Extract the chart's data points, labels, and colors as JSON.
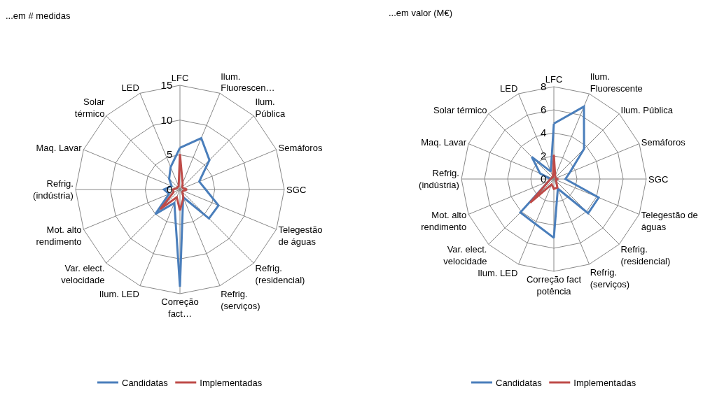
{
  "chart_data": [
    {
      "type": "radar",
      "title": "...em # medidas",
      "categories": [
        "LFC",
        "Ilum. Fluorescen…",
        "Ilum. Pública",
        "Semáforos",
        "SGC",
        "Telegestão de águas",
        "Refrig. (residencial)",
        "Refrig. (serviços)",
        "Correção fact…",
        "Ilum. LED",
        "Var. elect. velocidade",
        "Mot. alto rendimento",
        "Refrig. (indústria)",
        "Maq. Lavar",
        "Solar térmico",
        "LED"
      ],
      "series": [
        {
          "name": "Candidatas",
          "color": "#4a7ebb",
          "values": [
            6,
            8,
            6,
            3,
            3.7,
            6,
            5.9,
            1.2,
            14,
            2.1,
            5,
            1.7,
            2.3,
            1.3,
            2.2,
            3.5
          ]
        },
        {
          "name": "Implementadas",
          "color": "#be4b48",
          "values": [
            5.1,
            1,
            0.5,
            0.5,
            1,
            0.5,
            0.5,
            1.3,
            3,
            1.2,
            4,
            1,
            1,
            0.5,
            0.5,
            0.5
          ]
        }
      ],
      "ylim": [
        0,
        15
      ],
      "yticks": [
        0,
        5,
        10,
        15
      ],
      "grid": true,
      "legend": "bottom",
      "line_style": "solid"
    },
    {
      "type": "radar",
      "title": "...em valor (M€)",
      "categories": [
        "LFC",
        "Ilum. Fluorescente",
        "Ilum. Pública",
        "Semáforos",
        "SGC",
        "Telegestão de águas",
        "Refrig. (residencial)",
        "Refrig. (serviços)",
        "Correção fact potência",
        "Ilum. LED",
        "Var. elect. velocidade",
        "Mot. alto rendimento",
        "Refrig. (indústria)",
        "Maq. Lavar",
        "Solar térmico",
        "LED"
      ],
      "series": [
        {
          "name": "Candidatas",
          "color": "#4a7ebb",
          "values": [
            4.8,
            6.8,
            3.7,
            1.5,
            1,
            4.2,
            4.2,
            0.9,
            5.1,
            4.2,
            4.1,
            0.5,
            0.3,
            1.3,
            2.7,
            0.7
          ]
        },
        {
          "name": "Implementadas",
          "color": "#be4b48",
          "values": [
            2.1,
            0.3,
            0.2,
            0.2,
            0.3,
            0.2,
            0.3,
            0.8,
            0.85,
            0.5,
            2.9,
            0.5,
            0.3,
            0.2,
            0.2,
            0.2
          ]
        }
      ],
      "ylim": [
        0,
        8
      ],
      "yticks": [
        0,
        2,
        4,
        6,
        8
      ],
      "grid": true,
      "legend": "bottom",
      "line_style": "solid"
    }
  ]
}
